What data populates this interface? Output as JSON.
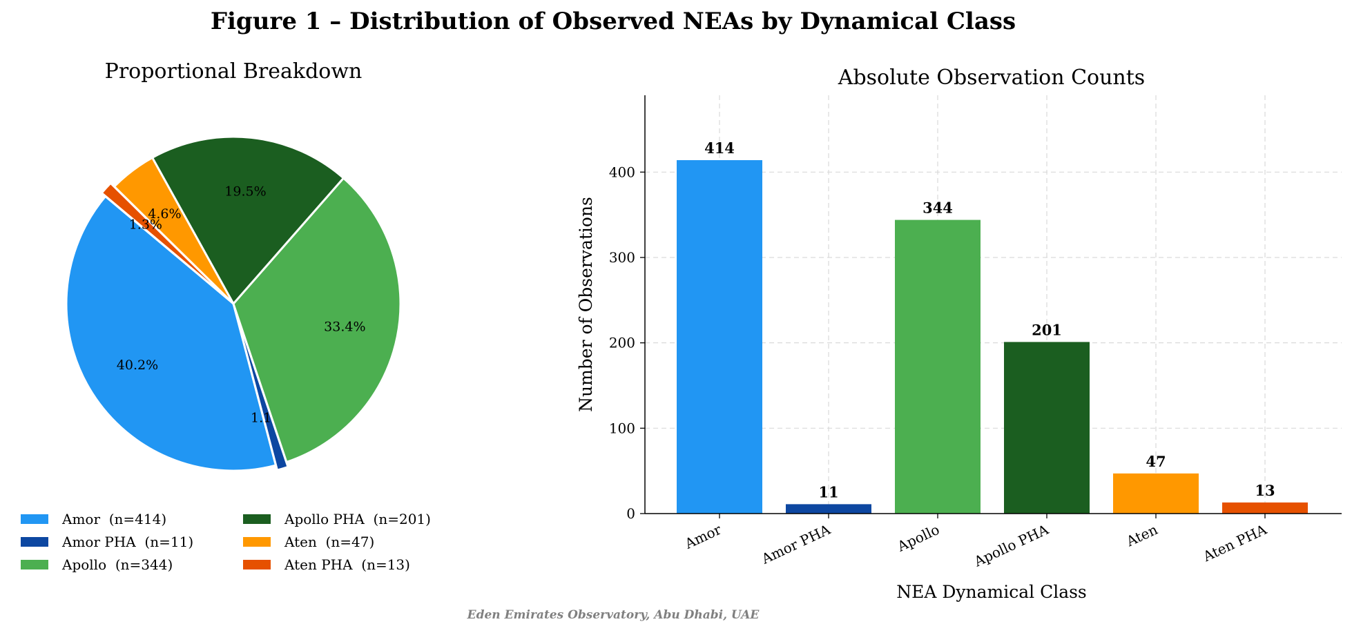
{
  "figure": {
    "title": "Figure 1 – Distribution of Observed NEAs by Dynamical Class",
    "footer": "Eden Emirates Observatory, Abu Dhabi, UAE"
  },
  "chart_data": [
    {
      "type": "pie",
      "title": "Proportional Breakdown",
      "categories": [
        "Amor",
        "Amor PHA",
        "Apollo",
        "Apollo PHA",
        "Aten",
        "Aten PHA"
      ],
      "values": [
        414,
        11,
        344,
        201,
        47,
        13
      ],
      "percent_labels": [
        "40.2%",
        "1.1%",
        "33.4%",
        "19.5%",
        "4.6%",
        "1.3%"
      ],
      "colors": [
        "#2196F3",
        "#0D47A1",
        "#4CAF50",
        "#1B5E20",
        "#FF9800",
        "#E65100"
      ],
      "legend": {
        "placement": "bottom",
        "columns": 2,
        "entries": [
          "Amor  (n=414)",
          "Amor PHA  (n=11)",
          "Apollo  (n=344)",
          "Apollo PHA  (n=201)",
          "Aten  (n=47)",
          "Aten PHA  (n=13)"
        ]
      }
    },
    {
      "type": "bar",
      "title": "Absolute Observation Counts",
      "categories": [
        "Amor",
        "Amor PHA",
        "Apollo",
        "Apollo PHA",
        "Aten",
        "Aten PHA"
      ],
      "values": [
        414,
        11,
        344,
        201,
        47,
        13
      ],
      "colors": [
        "#2196F3",
        "#0D47A1",
        "#4CAF50",
        "#1B5E20",
        "#FF9800",
        "#E65100"
      ],
      "xlabel": "NEA Dynamical Class",
      "ylabel": "Number of Observations",
      "ylim": [
        0,
        490
      ],
      "yticks": [
        0,
        100,
        200,
        300,
        400
      ],
      "grid": true
    }
  ]
}
